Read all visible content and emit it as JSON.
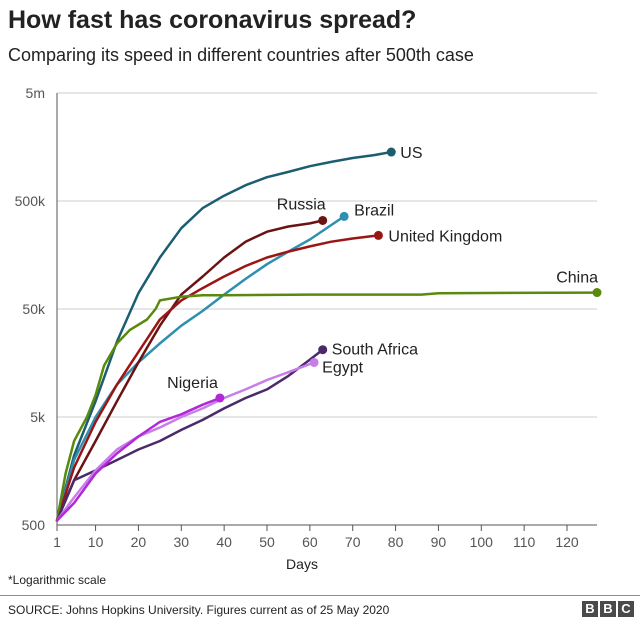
{
  "title": "How fast has coronavirus spread?",
  "subtitle": "Comparing its speed in different countries after 500th case",
  "note": "*Logarithmic scale",
  "source": "SOURCE: Johns Hopkins University. Figures current as of 25 May 2020",
  "logo": [
    "B",
    "B",
    "C"
  ],
  "chart_data": {
    "type": "line",
    "xlabel": "Days",
    "ylabel": "",
    "yscale": "log",
    "xlim": [
      1,
      127
    ],
    "ylim": [
      500,
      5000000
    ],
    "x_ticks": [
      1,
      10,
      20,
      30,
      40,
      50,
      60,
      70,
      80,
      90,
      100,
      110,
      120
    ],
    "y_ticks": [
      {
        "value": 500,
        "label": "500"
      },
      {
        "value": 5000,
        "label": "5k"
      },
      {
        "value": 50000,
        "label": "50k"
      },
      {
        "value": 500000,
        "label": "500k"
      },
      {
        "value": 5000000,
        "label": "5m"
      }
    ],
    "grid": "horizontal",
    "legend": "direct labels at line ends",
    "series": [
      {
        "name": "US",
        "color": "#1b5e70",
        "points": [
          [
            1,
            550
          ],
          [
            5,
            2200
          ],
          [
            10,
            7000
          ],
          [
            15,
            25000
          ],
          [
            20,
            70000
          ],
          [
            25,
            150000
          ],
          [
            30,
            280000
          ],
          [
            35,
            430000
          ],
          [
            40,
            560000
          ],
          [
            45,
            700000
          ],
          [
            50,
            830000
          ],
          [
            55,
            930000
          ],
          [
            60,
            1050000
          ],
          [
            65,
            1150000
          ],
          [
            70,
            1250000
          ],
          [
            75,
            1330000
          ],
          [
            79,
            1420000
          ]
        ]
      },
      {
        "name": "Brazil",
        "color": "#2e8fb0",
        "points": [
          [
            1,
            550
          ],
          [
            5,
            2000
          ],
          [
            10,
            5000
          ],
          [
            15,
            10000
          ],
          [
            20,
            16000
          ],
          [
            25,
            24000
          ],
          [
            30,
            35000
          ],
          [
            35,
            48000
          ],
          [
            40,
            68000
          ],
          [
            45,
            95000
          ],
          [
            50,
            130000
          ],
          [
            55,
            170000
          ],
          [
            60,
            220000
          ],
          [
            65,
            300000
          ],
          [
            68,
            360000
          ]
        ]
      },
      {
        "name": "Russia",
        "color": "#6b1212",
        "points": [
          [
            1,
            550
          ],
          [
            5,
            1300
          ],
          [
            10,
            3000
          ],
          [
            15,
            7000
          ],
          [
            20,
            16000
          ],
          [
            25,
            35000
          ],
          [
            30,
            68000
          ],
          [
            35,
            100000
          ],
          [
            40,
            150000
          ],
          [
            45,
            210000
          ],
          [
            50,
            260000
          ],
          [
            55,
            290000
          ],
          [
            60,
            310000
          ],
          [
            63,
            330000
          ]
        ]
      },
      {
        "name": "United Kingdom",
        "color": "#9c1515",
        "points": [
          [
            1,
            550
          ],
          [
            5,
            1700
          ],
          [
            10,
            4500
          ],
          [
            15,
            10000
          ],
          [
            20,
            20000
          ],
          [
            25,
            40000
          ],
          [
            30,
            60000
          ],
          [
            35,
            78000
          ],
          [
            40,
            100000
          ],
          [
            45,
            125000
          ],
          [
            50,
            150000
          ],
          [
            55,
            170000
          ],
          [
            60,
            190000
          ],
          [
            65,
            210000
          ],
          [
            70,
            225000
          ],
          [
            76,
            240000
          ]
        ]
      },
      {
        "name": "China",
        "color": "#5a8a0d",
        "points": [
          [
            1,
            550
          ],
          [
            3,
            1500
          ],
          [
            5,
            3000
          ],
          [
            8,
            5000
          ],
          [
            10,
            8000
          ],
          [
            12,
            15000
          ],
          [
            15,
            24000
          ],
          [
            18,
            32000
          ],
          [
            22,
            40000
          ],
          [
            24,
            50000
          ],
          [
            25,
            60000
          ],
          [
            30,
            65000
          ],
          [
            35,
            67000
          ],
          [
            40,
            67000
          ],
          [
            60,
            68000
          ],
          [
            86,
            68000
          ],
          [
            90,
            70000
          ],
          [
            127,
            71000
          ]
        ]
      },
      {
        "name": "South Africa",
        "color": "#4b2a6b",
        "points": [
          [
            1,
            550
          ],
          [
            5,
            1300
          ],
          [
            10,
            1600
          ],
          [
            15,
            2000
          ],
          [
            20,
            2500
          ],
          [
            25,
            3000
          ],
          [
            30,
            3800
          ],
          [
            35,
            4700
          ],
          [
            40,
            6000
          ],
          [
            45,
            7500
          ],
          [
            50,
            9000
          ],
          [
            55,
            12000
          ],
          [
            60,
            17000
          ],
          [
            63,
            21000
          ]
        ]
      },
      {
        "name": "Egypt",
        "color": "#c77ee8",
        "points": [
          [
            1,
            550
          ],
          [
            5,
            900
          ],
          [
            10,
            1600
          ],
          [
            15,
            2500
          ],
          [
            20,
            3300
          ],
          [
            25,
            4000
          ],
          [
            30,
            5000
          ],
          [
            35,
            6000
          ],
          [
            40,
            7500
          ],
          [
            45,
            9000
          ],
          [
            50,
            11000
          ],
          [
            55,
            13000
          ],
          [
            61,
            16000
          ]
        ]
      },
      {
        "name": "Nigeria",
        "color": "#b228d9",
        "points": [
          [
            1,
            550
          ],
          [
            5,
            800
          ],
          [
            10,
            1500
          ],
          [
            15,
            2300
          ],
          [
            20,
            3300
          ],
          [
            25,
            4500
          ],
          [
            30,
            5300
          ],
          [
            35,
            6500
          ],
          [
            39,
            7500
          ]
        ]
      }
    ]
  }
}
